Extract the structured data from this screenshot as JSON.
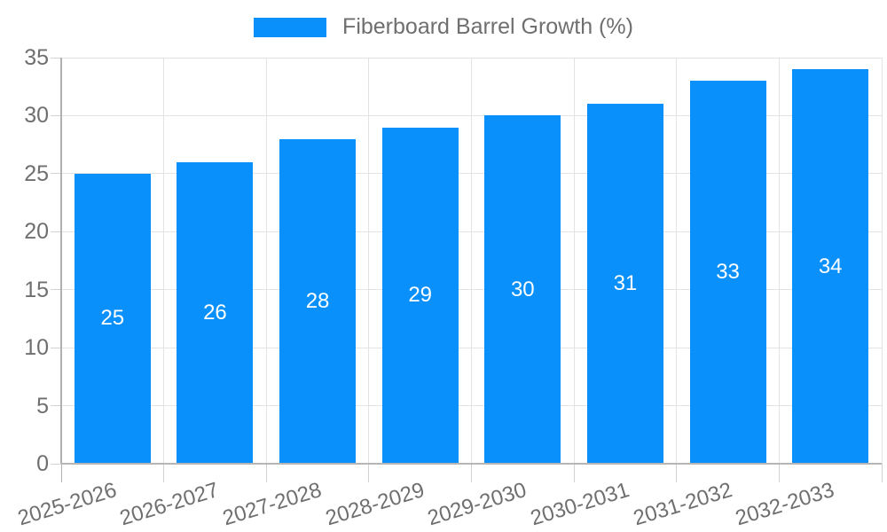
{
  "legend": {
    "label": "Fiberboard Barrel Growth (%)"
  },
  "colors": {
    "bar": "#0a90fa",
    "axis_text": "#6f6f6f",
    "bar_label_text": "#ffffff",
    "gridline": "#e3e3e3",
    "axis_line": "#b0b0b0",
    "baseline": "#b6b6b6",
    "tick": "#d2d2d2",
    "background": "#ffffff"
  },
  "chart_data": {
    "type": "bar",
    "title": "Fiberboard Barrel Growth (%)",
    "categories": [
      "2025-2026",
      "2026-2027",
      "2027-2028",
      "2028-2029",
      "2029-2030",
      "2030-2031",
      "2031-2032",
      "2032-2033"
    ],
    "values": [
      25,
      26,
      28,
      29,
      30,
      31,
      33,
      34
    ],
    "bar_value_labels": [
      "25",
      "26",
      "28",
      "29",
      "30",
      "31",
      "33",
      "34"
    ],
    "xlabel": "",
    "ylabel": "",
    "ylim": [
      0,
      35
    ],
    "yticks": [
      0,
      5,
      10,
      15,
      20,
      25,
      30,
      35
    ],
    "grid": true,
    "legend_position": "top-center",
    "x_label_rotation_deg": -17,
    "bar_labels_position": "center"
  }
}
